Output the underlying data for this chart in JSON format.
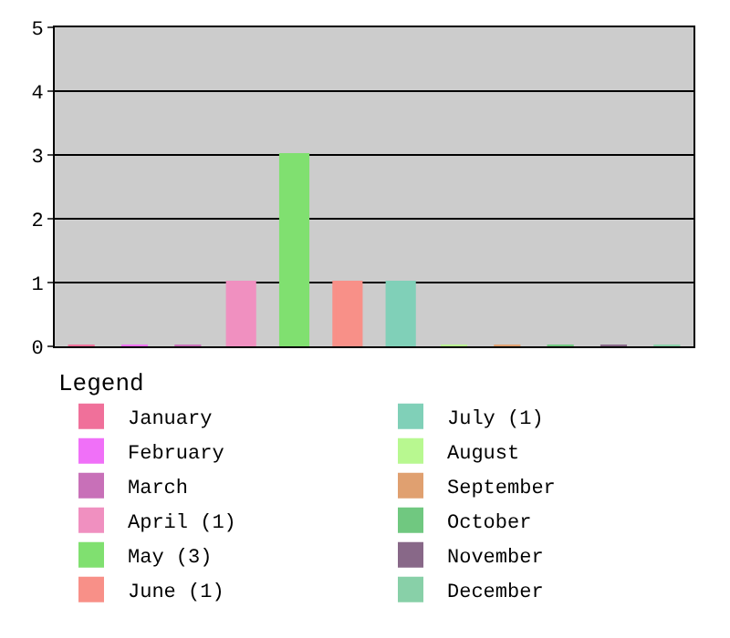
{
  "chart_data": {
    "type": "bar",
    "legend_title": "Legend",
    "legend": "bottom",
    "grid": "y",
    "tick_labels": "y",
    "categories": [
      null,
      null,
      null,
      null,
      null,
      null,
      null,
      null,
      null,
      null,
      null,
      null
    ],
    "ylim": [
      0,
      5
    ],
    "yticks": [
      0,
      1,
      2,
      3,
      4,
      5
    ],
    "series": [
      {
        "name": "January",
        "color": "#f0709a",
        "values": [
          0,
          null,
          null,
          null,
          null,
          null,
          null,
          null,
          null,
          null,
          null,
          null
        ]
      },
      {
        "name": "February",
        "color": "#f070f8",
        "values": [
          null,
          0,
          null,
          null,
          null,
          null,
          null,
          null,
          null,
          null,
          null,
          null
        ]
      },
      {
        "name": "March",
        "color": "#c870b8",
        "values": [
          null,
          null,
          0,
          null,
          null,
          null,
          null,
          null,
          null,
          null,
          null,
          null
        ]
      },
      {
        "name": "April (1)",
        "color": "#f090c0",
        "values": [
          null,
          null,
          null,
          1,
          null,
          null,
          null,
          null,
          null,
          null,
          null,
          null
        ]
      },
      {
        "name": "May (3)",
        "color": "#80e070",
        "values": [
          null,
          null,
          null,
          null,
          3,
          null,
          null,
          null,
          null,
          null,
          null,
          null
        ]
      },
      {
        "name": "June (1)",
        "color": "#f89088",
        "values": [
          null,
          null,
          null,
          null,
          null,
          1,
          null,
          null,
          null,
          null,
          null,
          null
        ]
      },
      {
        "name": "July (1)",
        "color": "#80d0b8",
        "values": [
          null,
          null,
          null,
          null,
          null,
          null,
          1,
          null,
          null,
          null,
          null,
          null
        ]
      },
      {
        "name": "August",
        "color": "#b8f890",
        "values": [
          null,
          null,
          null,
          null,
          null,
          null,
          null,
          0,
          null,
          null,
          null,
          null
        ]
      },
      {
        "name": "September",
        "color": "#e0a070",
        "values": [
          null,
          null,
          null,
          null,
          null,
          null,
          null,
          null,
          0,
          null,
          null,
          null
        ]
      },
      {
        "name": "October",
        "color": "#70c880",
        "values": [
          null,
          null,
          null,
          null,
          null,
          null,
          null,
          null,
          null,
          0,
          null,
          null
        ]
      },
      {
        "name": "November",
        "color": "#886888",
        "values": [
          null,
          null,
          null,
          null,
          null,
          null,
          null,
          null,
          null,
          null,
          0,
          null
        ]
      },
      {
        "name": "December",
        "color": "#88d0a8",
        "values": [
          null,
          null,
          null,
          null,
          null,
          null,
          null,
          null,
          null,
          null,
          null,
          0
        ]
      }
    ]
  }
}
